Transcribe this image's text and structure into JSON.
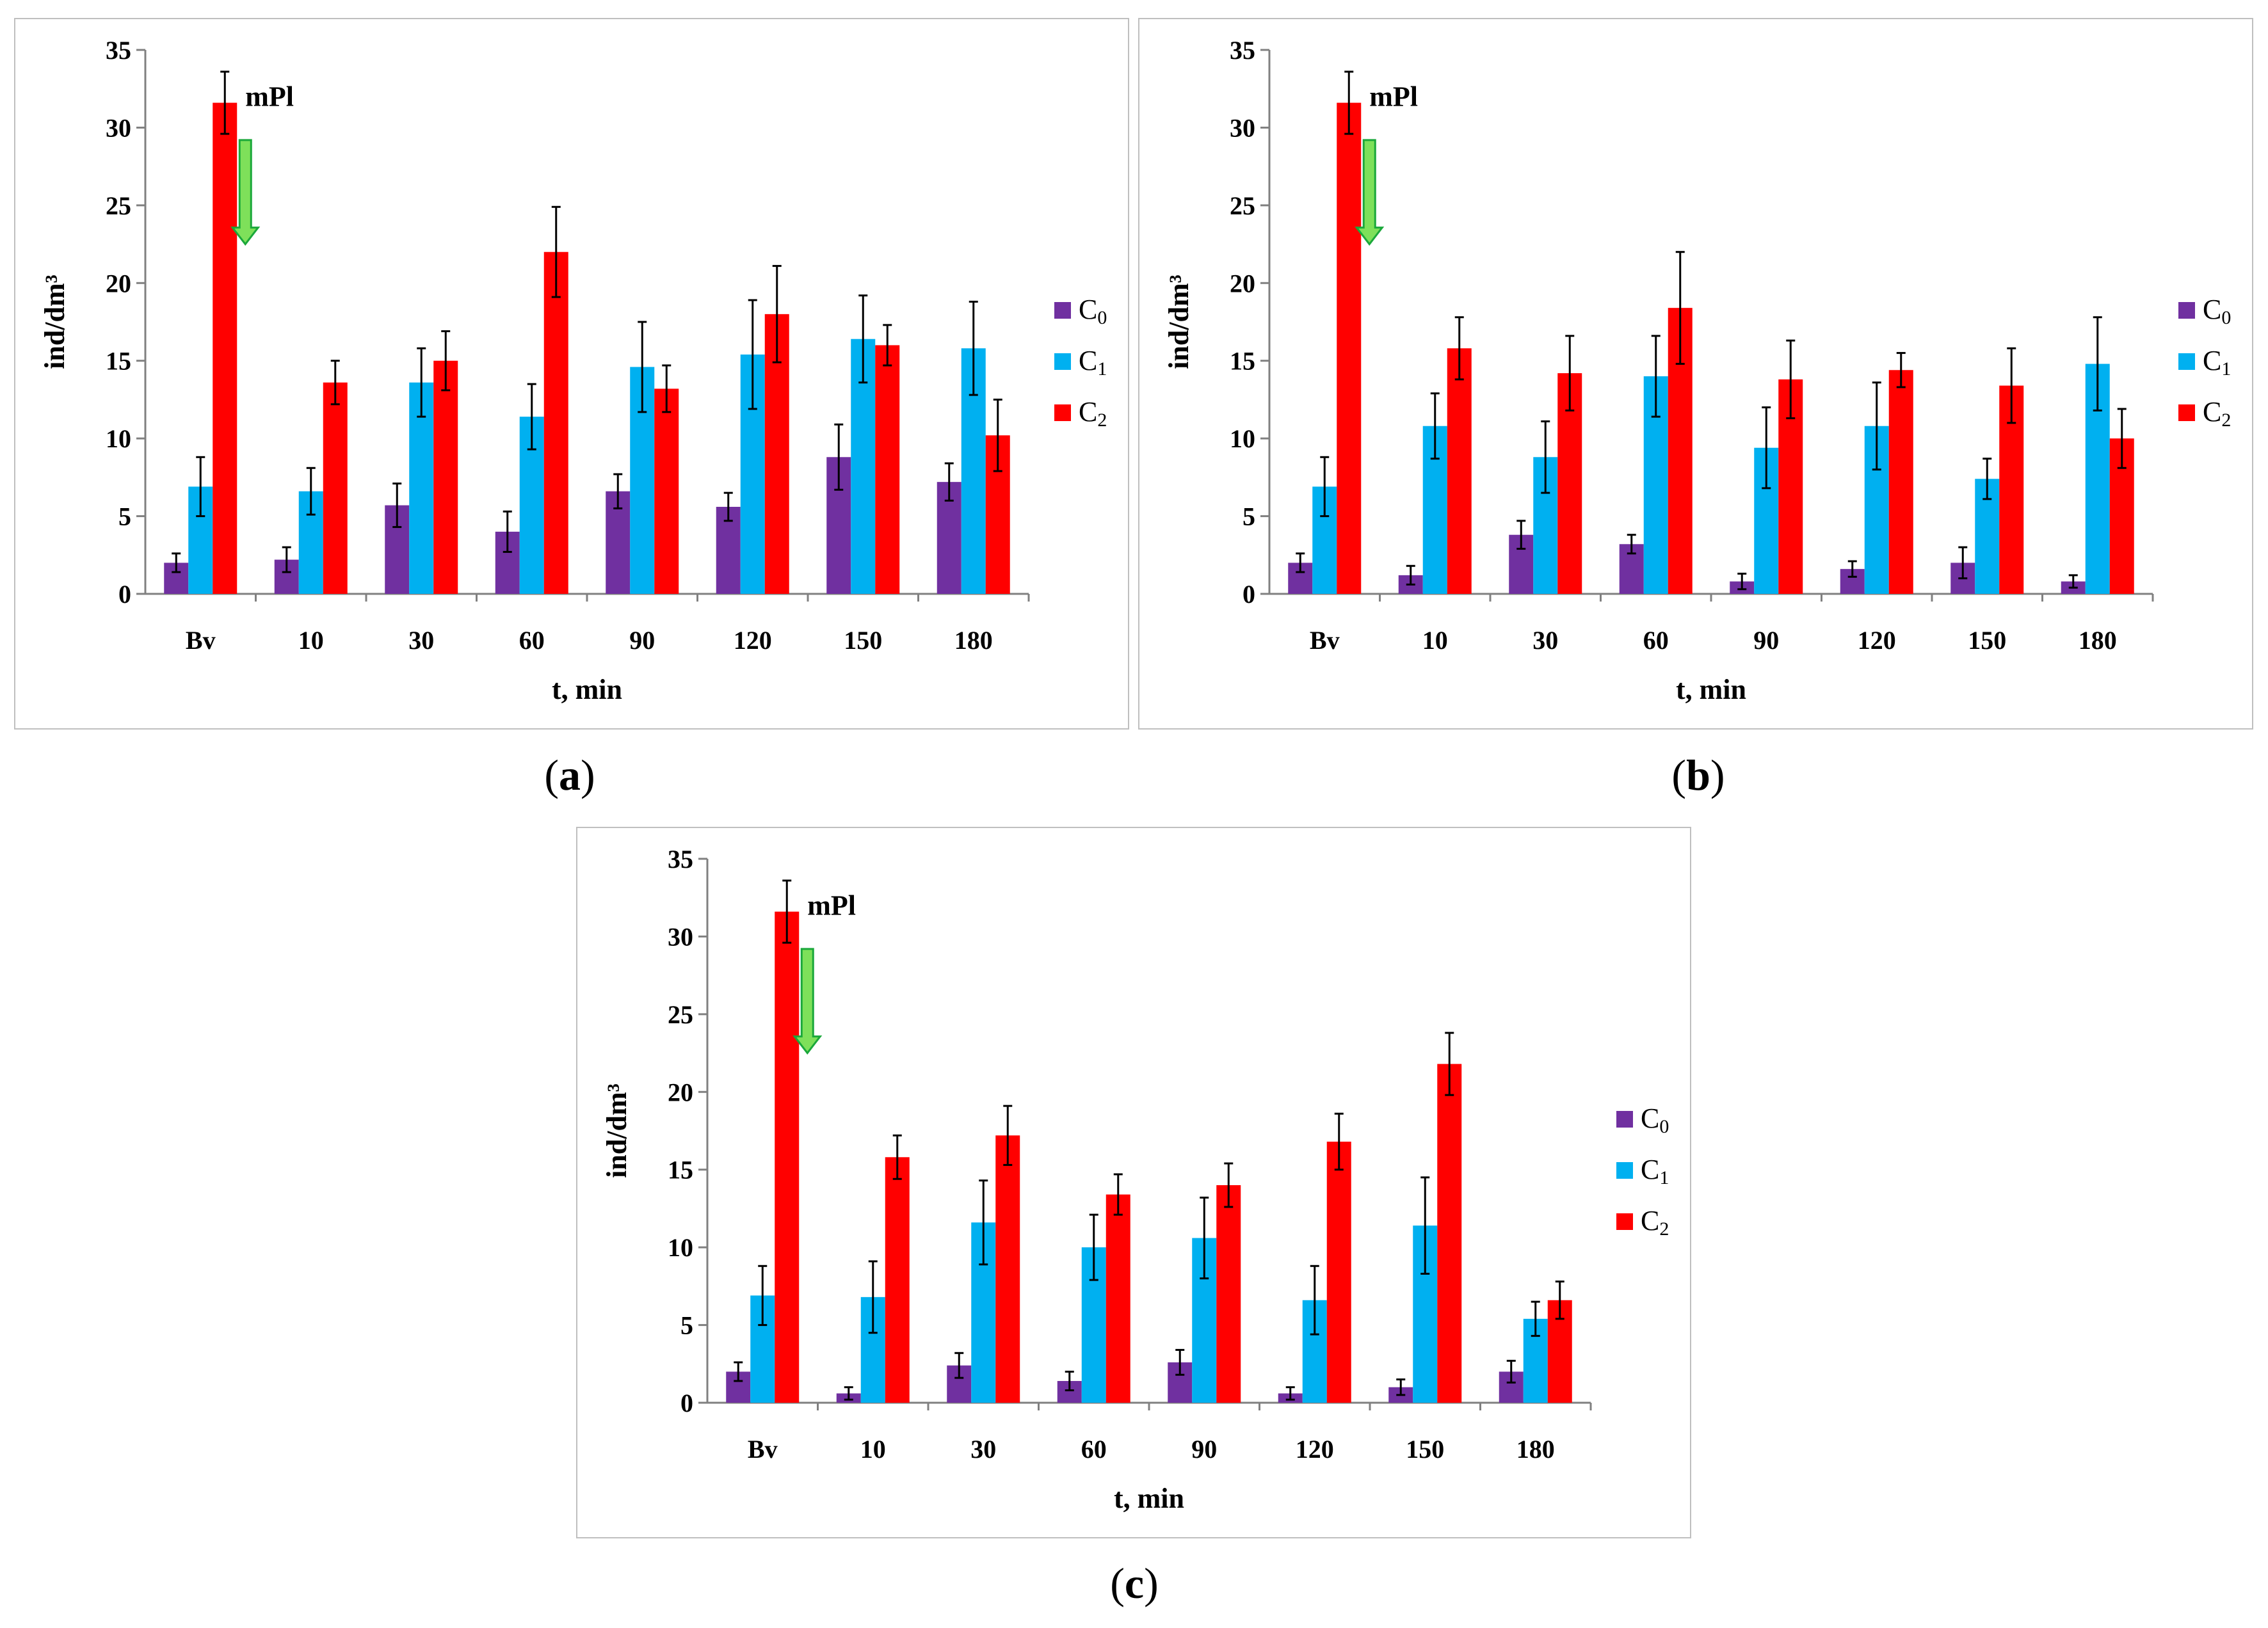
{
  "figure": {
    "captions": [
      {
        "open": "(",
        "letter": "a",
        "close": ")"
      },
      {
        "open": "(",
        "letter": "b",
        "close": ")"
      },
      {
        "open": "(",
        "letter": "c",
        "close": ")"
      }
    ]
  },
  "colors": {
    "C0": "#7030a0",
    "C1": "#00b0f0",
    "C2": "#ff0000",
    "arrow_fill": "#7ee05a",
    "arrow_stroke": "#1aa83a",
    "axis": "#808080"
  },
  "chart_data": [
    {
      "type": "bar",
      "panel": "a",
      "categories": [
        "Bv",
        "10",
        "30",
        "60",
        "90",
        "120",
        "150",
        "180"
      ],
      "xlabel": "t, min",
      "ylabel": "ind/dm³",
      "ylim": [
        0,
        35
      ],
      "yticks": [
        0,
        5,
        10,
        15,
        20,
        25,
        30,
        35
      ],
      "annotation": {
        "text": "mPl",
        "category": "Bv",
        "arrow": "down"
      },
      "legend_position": "right",
      "series": [
        {
          "name": "C",
          "sub": "0",
          "values": [
            2.0,
            2.2,
            5.7,
            4.0,
            6.6,
            5.6,
            8.8,
            7.2
          ],
          "errors": [
            0.6,
            0.8,
            1.4,
            1.3,
            1.1,
            0.9,
            2.1,
            1.2
          ]
        },
        {
          "name": "C",
          "sub": "1",
          "values": [
            6.9,
            6.6,
            13.6,
            11.4,
            14.6,
            15.4,
            16.4,
            15.8
          ],
          "errors": [
            1.9,
            1.5,
            2.2,
            2.1,
            2.9,
            3.5,
            2.8,
            3.0
          ]
        },
        {
          "name": "C",
          "sub": "2",
          "values": [
            31.6,
            13.6,
            15.0,
            22.0,
            13.2,
            18.0,
            16.0,
            10.2
          ],
          "errors": [
            2.0,
            1.4,
            1.9,
            2.9,
            1.5,
            3.1,
            1.3,
            2.3
          ]
        }
      ]
    },
    {
      "type": "bar",
      "panel": "b",
      "categories": [
        "Bv",
        "10",
        "30",
        "60",
        "90",
        "120",
        "150",
        "180"
      ],
      "xlabel": "t, min",
      "ylabel": "ind/dm³",
      "ylim": [
        0,
        35
      ],
      "yticks": [
        0,
        5,
        10,
        15,
        20,
        25,
        30,
        35
      ],
      "annotation": {
        "text": "mPl",
        "category": "Bv",
        "arrow": "down"
      },
      "legend_position": "right",
      "series": [
        {
          "name": "C",
          "sub": "0",
          "values": [
            2.0,
            1.2,
            3.8,
            3.2,
            0.8,
            1.6,
            2.0,
            0.8
          ],
          "errors": [
            0.6,
            0.6,
            0.9,
            0.6,
            0.5,
            0.5,
            1.0,
            0.4
          ]
        },
        {
          "name": "C",
          "sub": "1",
          "values": [
            6.9,
            10.8,
            8.8,
            14.0,
            9.4,
            10.8,
            7.4,
            14.8
          ],
          "errors": [
            1.9,
            2.1,
            2.3,
            2.6,
            2.6,
            2.8,
            1.3,
            3.0
          ]
        },
        {
          "name": "C",
          "sub": "2",
          "values": [
            31.6,
            15.8,
            14.2,
            18.4,
            13.8,
            14.4,
            13.4,
            10.0
          ],
          "errors": [
            2.0,
            2.0,
            2.4,
            3.6,
            2.5,
            1.1,
            2.4,
            1.9
          ]
        }
      ]
    },
    {
      "type": "bar",
      "panel": "c",
      "categories": [
        "Bv",
        "10",
        "30",
        "60",
        "90",
        "120",
        "150",
        "180"
      ],
      "xlabel": "t, min",
      "ylabel": "ind/dm³",
      "ylim": [
        0,
        35
      ],
      "yticks": [
        0,
        5,
        10,
        15,
        20,
        25,
        30,
        35
      ],
      "annotation": {
        "text": "mPl",
        "category": "Bv",
        "arrow": "down"
      },
      "legend_position": "right",
      "series": [
        {
          "name": "C",
          "sub": "0",
          "values": [
            2.0,
            0.6,
            2.4,
            1.4,
            2.6,
            0.6,
            1.0,
            2.0
          ],
          "errors": [
            0.6,
            0.4,
            0.8,
            0.6,
            0.8,
            0.4,
            0.5,
            0.7
          ]
        },
        {
          "name": "C",
          "sub": "1",
          "values": [
            6.9,
            6.8,
            11.6,
            10.0,
            10.6,
            6.6,
            11.4,
            5.4
          ],
          "errors": [
            1.9,
            2.3,
            2.7,
            2.1,
            2.6,
            2.2,
            3.1,
            1.1
          ]
        },
        {
          "name": "C",
          "sub": "2",
          "values": [
            31.6,
            15.8,
            17.2,
            13.4,
            14.0,
            16.8,
            21.8,
            6.6
          ],
          "errors": [
            2.0,
            1.4,
            1.9,
            1.3,
            1.4,
            1.8,
            2.0,
            1.2
          ]
        }
      ]
    }
  ]
}
